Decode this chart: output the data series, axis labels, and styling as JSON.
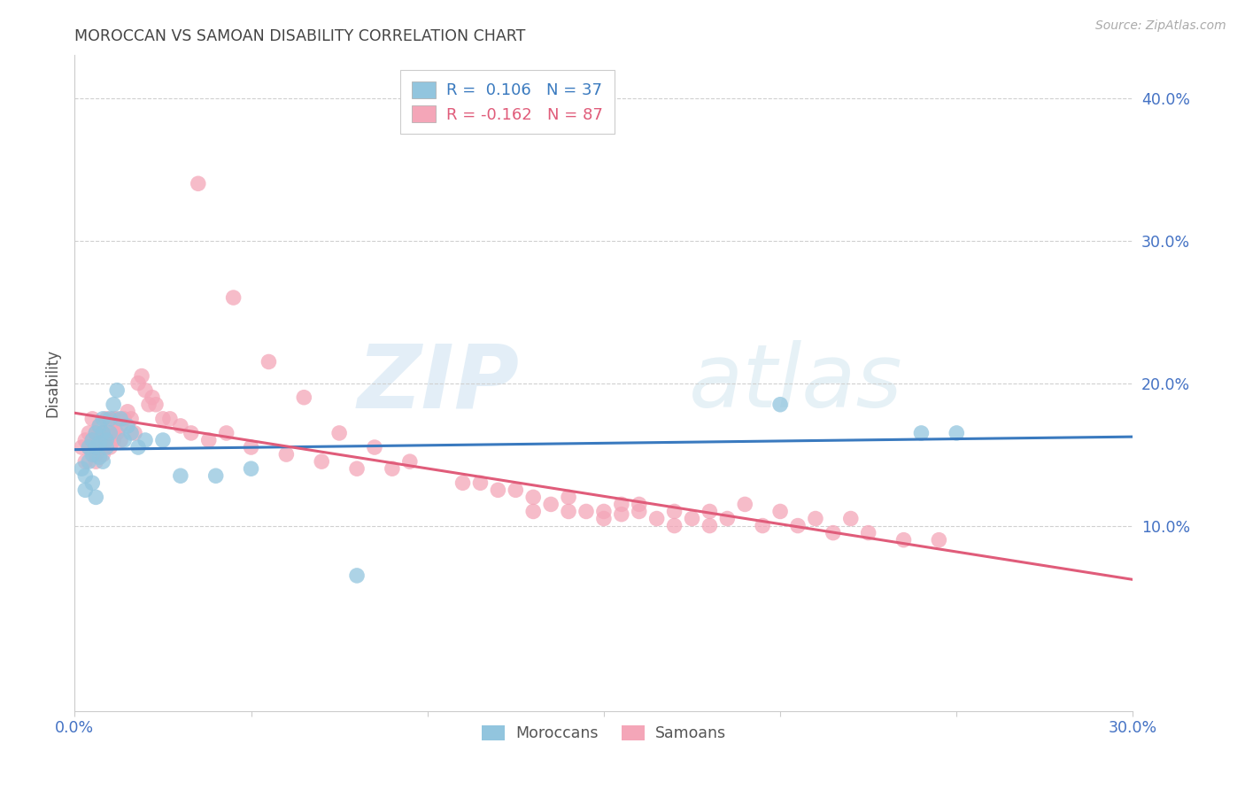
{
  "title": "MOROCCAN VS SAMOAN DISABILITY CORRELATION CHART",
  "source": "Source: ZipAtlas.com",
  "ylabel": "Disability",
  "watermark_zip": "ZIP",
  "watermark_atlas": "atlas",
  "legend_moroccan": "R =  0.106   N = 37",
  "legend_samoan": "R = -0.162   N = 87",
  "legend_label_moroccan": "Moroccans",
  "legend_label_samoan": "Samoans",
  "xlim": [
    0.0,
    0.3
  ],
  "ylim": [
    -0.03,
    0.43
  ],
  "yticks": [
    0.1,
    0.2,
    0.3,
    0.4
  ],
  "ytick_labels": [
    "10.0%",
    "20.0%",
    "30.0%",
    "40.0%"
  ],
  "xticks": [
    0.0,
    0.05,
    0.1,
    0.15,
    0.2,
    0.25,
    0.3
  ],
  "xtick_labels": [
    "0.0%",
    "",
    "",
    "",
    "",
    "",
    "30.0%"
  ],
  "moroccan_color": "#92c5de",
  "samoan_color": "#f4a6b8",
  "moroccan_line_color": "#3a7abf",
  "samoan_line_color": "#e05c7a",
  "grid_color": "#d0d0d0",
  "title_color": "#444444",
  "axis_label_color": "#4472c4",
  "background_color": "#ffffff",
  "moroccan_x": [
    0.002,
    0.003,
    0.003,
    0.004,
    0.004,
    0.005,
    0.005,
    0.005,
    0.006,
    0.006,
    0.006,
    0.007,
    0.007,
    0.007,
    0.008,
    0.008,
    0.008,
    0.009,
    0.009,
    0.01,
    0.01,
    0.011,
    0.012,
    0.013,
    0.014,
    0.015,
    0.016,
    0.018,
    0.02,
    0.025,
    0.03,
    0.04,
    0.05,
    0.08,
    0.2,
    0.24,
    0.25
  ],
  "moroccan_y": [
    0.14,
    0.135,
    0.125,
    0.155,
    0.145,
    0.15,
    0.16,
    0.13,
    0.165,
    0.155,
    0.12,
    0.148,
    0.158,
    0.17,
    0.165,
    0.175,
    0.145,
    0.16,
    0.155,
    0.175,
    0.165,
    0.185,
    0.195,
    0.175,
    0.16,
    0.17,
    0.165,
    0.155,
    0.16,
    0.16,
    0.135,
    0.135,
    0.14,
    0.065,
    0.185,
    0.165,
    0.165
  ],
  "samoan_x": [
    0.002,
    0.003,
    0.003,
    0.004,
    0.004,
    0.005,
    0.005,
    0.006,
    0.006,
    0.006,
    0.007,
    0.007,
    0.008,
    0.008,
    0.008,
    0.009,
    0.009,
    0.01,
    0.01,
    0.011,
    0.011,
    0.011,
    0.012,
    0.012,
    0.013,
    0.013,
    0.014,
    0.015,
    0.016,
    0.017,
    0.018,
    0.019,
    0.02,
    0.021,
    0.022,
    0.023,
    0.025,
    0.027,
    0.03,
    0.033,
    0.038,
    0.043,
    0.05,
    0.06,
    0.07,
    0.08,
    0.09,
    0.11,
    0.12,
    0.13,
    0.14,
    0.15,
    0.155,
    0.16,
    0.17,
    0.18,
    0.19,
    0.2,
    0.21,
    0.22,
    0.13,
    0.14,
    0.15,
    0.16,
    0.17,
    0.18,
    0.035,
    0.045,
    0.055,
    0.065,
    0.075,
    0.085,
    0.095,
    0.115,
    0.125,
    0.135,
    0.145,
    0.155,
    0.165,
    0.175,
    0.185,
    0.195,
    0.205,
    0.215,
    0.225,
    0.235,
    0.245
  ],
  "samoan_y": [
    0.155,
    0.16,
    0.145,
    0.155,
    0.165,
    0.16,
    0.175,
    0.15,
    0.165,
    0.145,
    0.17,
    0.16,
    0.155,
    0.165,
    0.15,
    0.16,
    0.175,
    0.165,
    0.155,
    0.165,
    0.175,
    0.16,
    0.165,
    0.175,
    0.16,
    0.17,
    0.175,
    0.18,
    0.175,
    0.165,
    0.2,
    0.205,
    0.195,
    0.185,
    0.19,
    0.185,
    0.175,
    0.175,
    0.17,
    0.165,
    0.16,
    0.165,
    0.155,
    0.15,
    0.145,
    0.14,
    0.14,
    0.13,
    0.125,
    0.12,
    0.12,
    0.11,
    0.115,
    0.115,
    0.11,
    0.11,
    0.115,
    0.11,
    0.105,
    0.105,
    0.11,
    0.11,
    0.105,
    0.11,
    0.1,
    0.1,
    0.34,
    0.26,
    0.215,
    0.19,
    0.165,
    0.155,
    0.145,
    0.13,
    0.125,
    0.115,
    0.11,
    0.108,
    0.105,
    0.105,
    0.105,
    0.1,
    0.1,
    0.095,
    0.095,
    0.09,
    0.09
  ],
  "moroccan_R": 0.106,
  "moroccan_N": 37,
  "samoan_R": -0.162,
  "samoan_N": 87
}
